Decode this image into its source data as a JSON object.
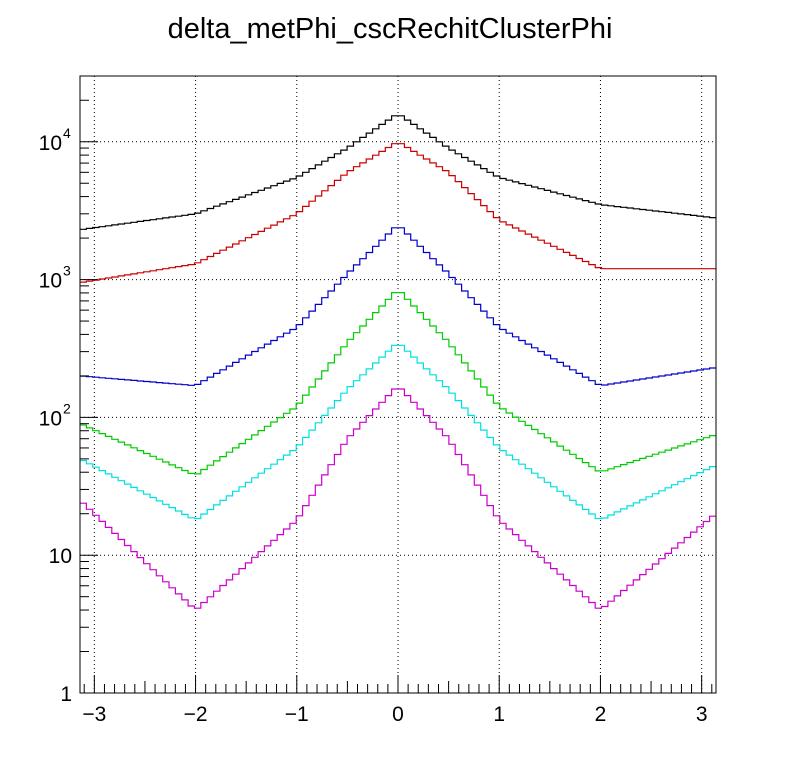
{
  "chart_data": {
    "type": "line",
    "title": "delta_metPhi_cscRechitClusterPhi",
    "xlabel": "",
    "ylabel": "",
    "xlim": [
      -3.1416,
      3.1416
    ],
    "ylim": [
      1,
      30000
    ],
    "yscale": "log",
    "grid": true,
    "x_ticks": [
      {
        "v": -3,
        "label": "−3"
      },
      {
        "v": -2,
        "label": "−2"
      },
      {
        "v": -1,
        "label": "−1"
      },
      {
        "v": 0,
        "label": "0"
      },
      {
        "v": 1,
        "label": "1"
      },
      {
        "v": 2,
        "label": "2"
      },
      {
        "v": 3,
        "label": "3"
      }
    ],
    "y_ticks": [
      {
        "v": 1,
        "label": "1",
        "sup": ""
      },
      {
        "v": 10,
        "label": "10",
        "sup": ""
      },
      {
        "v": 100,
        "label": "10",
        "sup": "2"
      },
      {
        "v": 1000,
        "label": "10",
        "sup": "3"
      },
      {
        "v": 10000,
        "label": "10",
        "sup": "4"
      }
    ],
    "series": [
      {
        "color": "#000000",
        "values": [
          [
            -3.14,
            2300
          ],
          [
            -2.0,
            3000
          ],
          [
            -1.0,
            5500
          ],
          [
            -0.5,
            9000
          ],
          [
            0.0,
            16000
          ],
          [
            0.5,
            9000
          ],
          [
            1.0,
            5500
          ],
          [
            2.0,
            3500
          ],
          [
            3.14,
            2800
          ]
        ]
      },
      {
        "color": "#cc0000",
        "values": [
          [
            -3.14,
            950
          ],
          [
            -2.0,
            1300
          ],
          [
            -1.0,
            3000
          ],
          [
            -0.5,
            6000
          ],
          [
            0.0,
            10000
          ],
          [
            0.5,
            6000
          ],
          [
            1.0,
            2700
          ],
          [
            2.0,
            1200
          ],
          [
            3.14,
            1200
          ]
        ]
      },
      {
        "color": "#0000cc",
        "values": [
          [
            -3.14,
            200
          ],
          [
            -2.0,
            170
          ],
          [
            -1.0,
            450
          ],
          [
            -0.5,
            1100
          ],
          [
            0.0,
            2500
          ],
          [
            0.5,
            1100
          ],
          [
            1.0,
            450
          ],
          [
            2.0,
            170
          ],
          [
            3.14,
            230
          ]
        ]
      },
      {
        "color": "#00cc00",
        "values": [
          [
            -3.14,
            90
          ],
          [
            -2.0,
            38
          ],
          [
            -1.0,
            120
          ],
          [
            -0.5,
            350
          ],
          [
            0.0,
            850
          ],
          [
            0.5,
            350
          ],
          [
            1.0,
            120
          ],
          [
            2.0,
            40
          ],
          [
            3.14,
            75
          ]
        ]
      },
      {
        "color": "#00e0e0",
        "values": [
          [
            -3.14,
            50
          ],
          [
            -2.0,
            18
          ],
          [
            -1.0,
            60
          ],
          [
            -0.5,
            160
          ],
          [
            0.0,
            350
          ],
          [
            0.5,
            160
          ],
          [
            1.0,
            60
          ],
          [
            2.0,
            18
          ],
          [
            3.14,
            45
          ]
        ]
      },
      {
        "color": "#cc00cc",
        "values": [
          [
            -3.14,
            25
          ],
          [
            -2.0,
            4
          ],
          [
            -1.0,
            18
          ],
          [
            -0.5,
            70
          ],
          [
            0.0,
            170
          ],
          [
            0.5,
            70
          ],
          [
            1.0,
            18
          ],
          [
            2.0,
            4
          ],
          [
            3.14,
            20
          ]
        ]
      }
    ]
  }
}
